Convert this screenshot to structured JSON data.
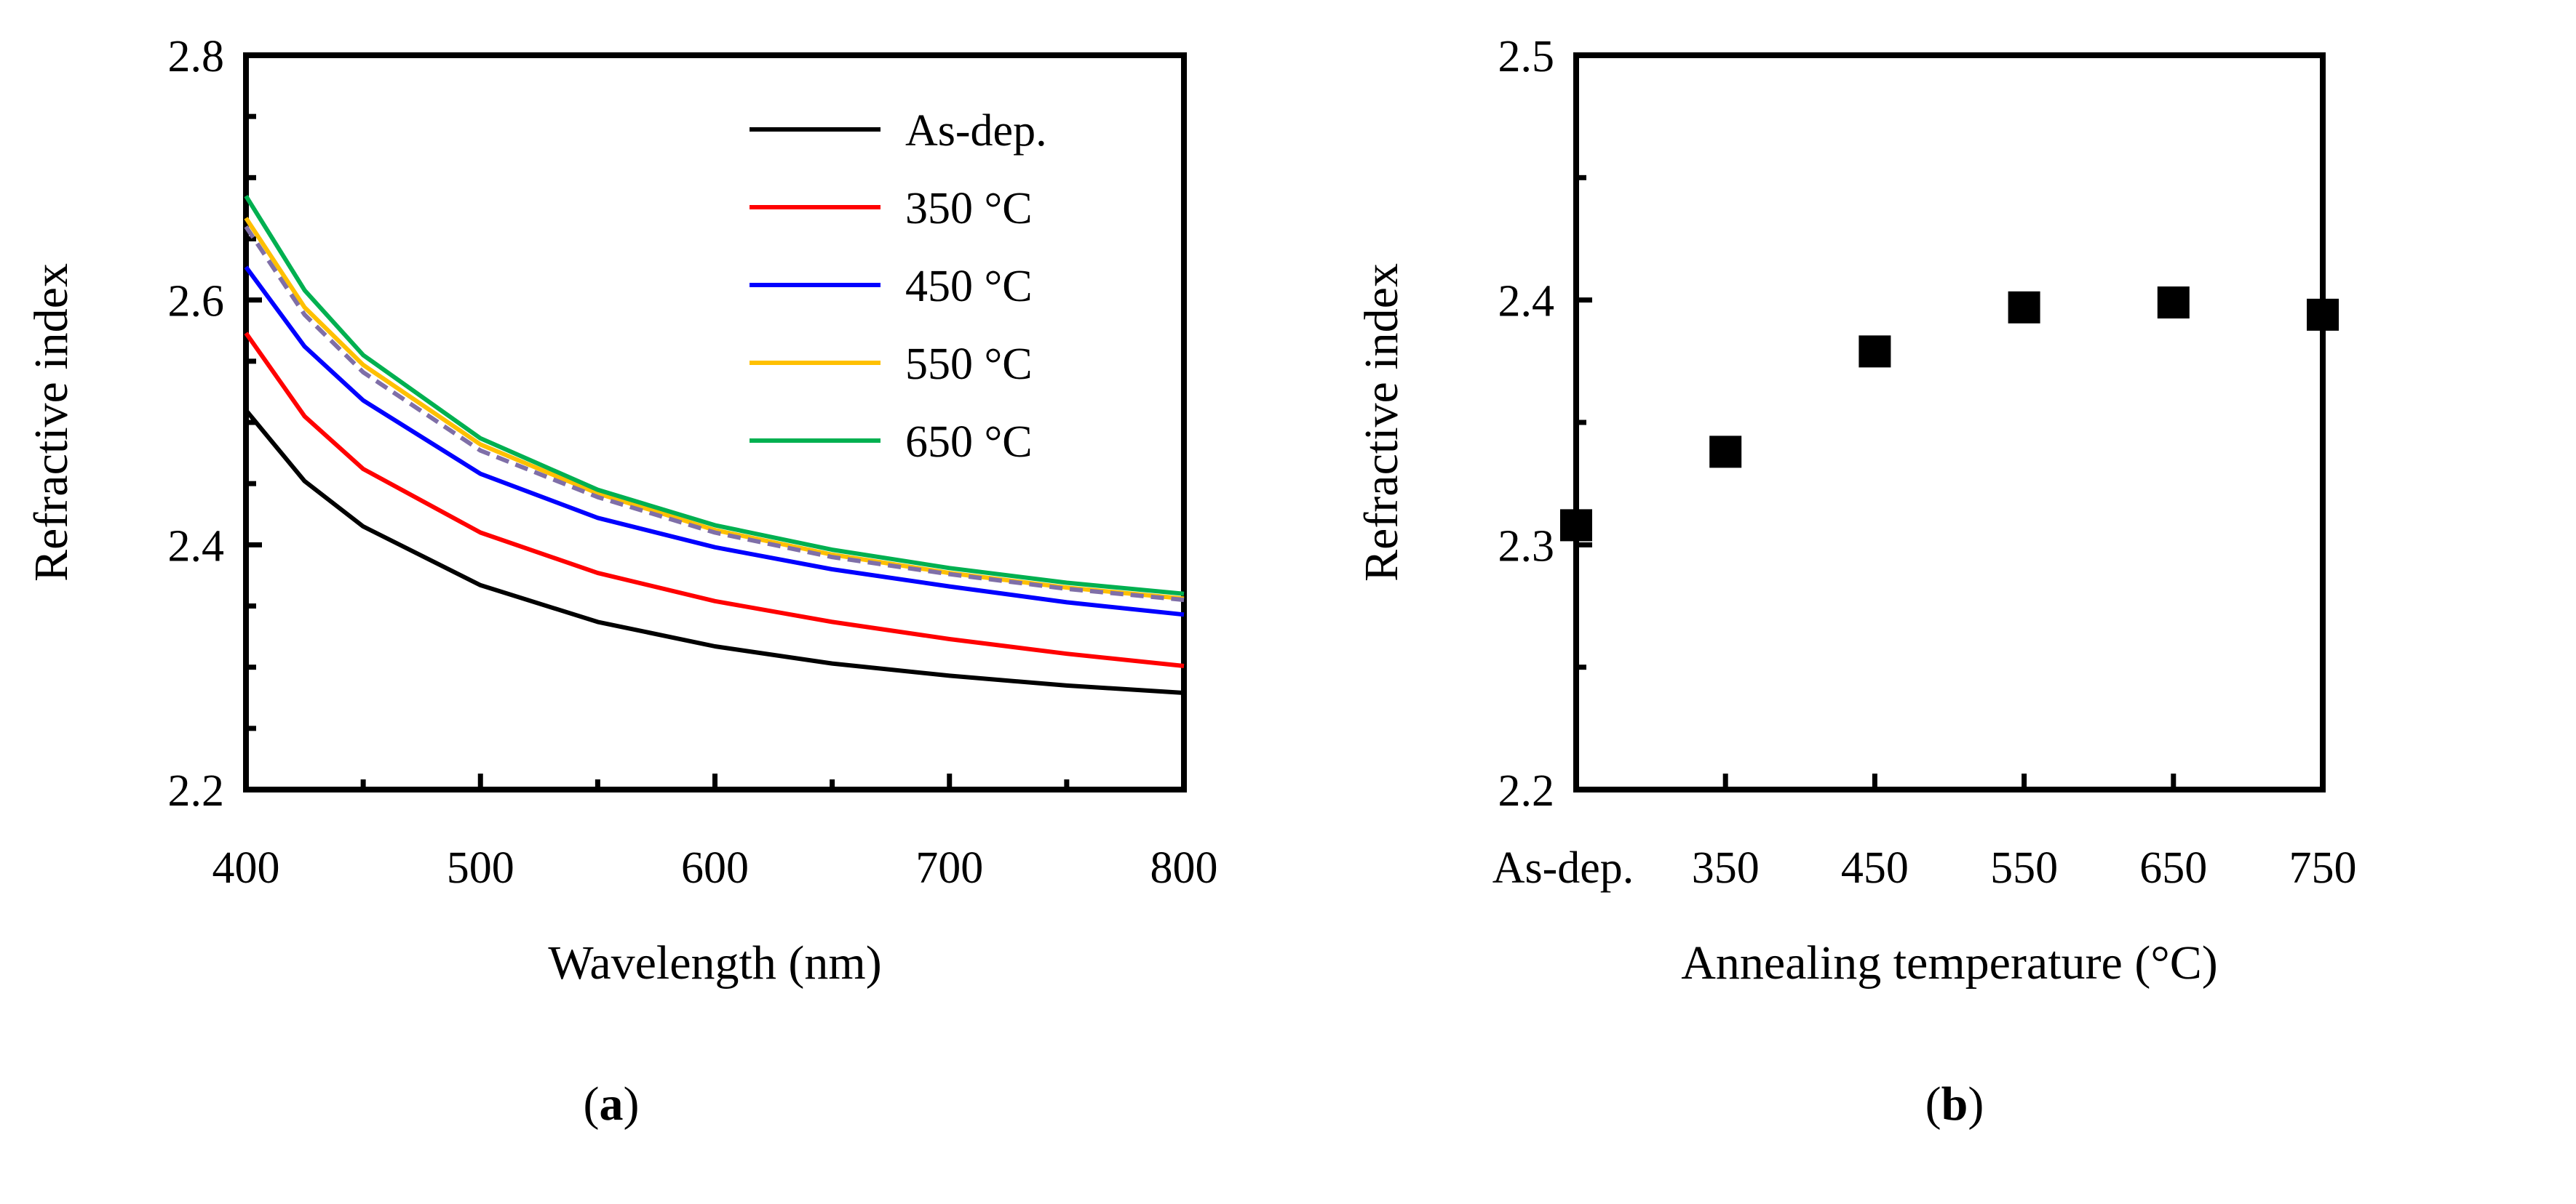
{
  "figure": {
    "panel_a_label": {
      "open": "(",
      "letter": "a",
      "close": ")"
    },
    "panel_b_label": {
      "open": "(",
      "letter": "b",
      "close": ")"
    }
  },
  "chart_data": [
    {
      "type": "line",
      "panel": "a",
      "xlabel": "Wavelength (nm)",
      "ylabel": "Refractive index",
      "xlim": [
        400,
        800
      ],
      "ylim": [
        2.2,
        2.8
      ],
      "x_ticks": [
        400,
        500,
        600,
        700,
        800
      ],
      "x_tick_labels": [
        "400",
        "500",
        "600",
        "700",
        "800"
      ],
      "y_ticks": [
        2.2,
        2.4,
        2.6,
        2.8
      ],
      "y_tick_labels": [
        "2.2",
        "2.4",
        "2.6",
        "2.8"
      ],
      "x_minor_step": 50,
      "y_minor_step": 0.05,
      "grid": false,
      "legend_position": "top-right",
      "x": [
        400,
        425,
        450,
        500,
        550,
        600,
        650,
        700,
        750,
        800
      ],
      "series": [
        {
          "name": "As-dep.",
          "color": "#000000",
          "dash": false,
          "in_legend": true,
          "values": [
            2.51,
            2.452,
            2.415,
            2.367,
            2.337,
            2.317,
            2.303,
            2.293,
            2.285,
            2.279
          ]
        },
        {
          "name": "350 °C",
          "color": "#ff0000",
          "dash": false,
          "in_legend": true,
          "values": [
            2.573,
            2.505,
            2.462,
            2.41,
            2.377,
            2.354,
            2.337,
            2.323,
            2.311,
            2.301
          ]
        },
        {
          "name": "450 °C",
          "color": "#0000ff",
          "dash": false,
          "in_legend": true,
          "values": [
            2.627,
            2.562,
            2.518,
            2.458,
            2.422,
            2.398,
            2.38,
            2.366,
            2.353,
            2.343
          ]
        },
        {
          "name": "550 °C",
          "color": "#ffc000",
          "dash": false,
          "in_legend": true,
          "values": [
            2.667,
            2.594,
            2.547,
            2.482,
            2.442,
            2.412,
            2.392,
            2.377,
            2.365,
            2.356
          ]
        },
        {
          "name": "",
          "color": "#7f6fa8",
          "dash": true,
          "in_legend": false,
          "values": [
            2.66,
            2.588,
            2.541,
            2.477,
            2.439,
            2.41,
            2.39,
            2.376,
            2.364,
            2.355
          ]
        },
        {
          "name": "650 °C",
          "color": "#00b050",
          "dash": false,
          "in_legend": true,
          "values": [
            2.685,
            2.608,
            2.555,
            2.487,
            2.445,
            2.416,
            2.396,
            2.381,
            2.369,
            2.36
          ]
        }
      ]
    },
    {
      "type": "scatter",
      "panel": "b",
      "xlabel": "Annealing temperature (°C)",
      "ylabel": "Refractive index",
      "ylim": [
        2.2,
        2.5
      ],
      "categories": [
        "As-dep.",
        "350",
        "450",
        "550",
        "650",
        "750"
      ],
      "values": [
        2.308,
        2.338,
        2.379,
        2.397,
        2.399,
        2.394
      ],
      "y_ticks": [
        2.2,
        2.3,
        2.4,
        2.5
      ],
      "y_tick_labels": [
        "2.2",
        "2.3",
        "2.4",
        "2.5"
      ],
      "y_minor_step": 0.05,
      "grid": false,
      "marker": "square",
      "marker_color": "#000000"
    }
  ]
}
